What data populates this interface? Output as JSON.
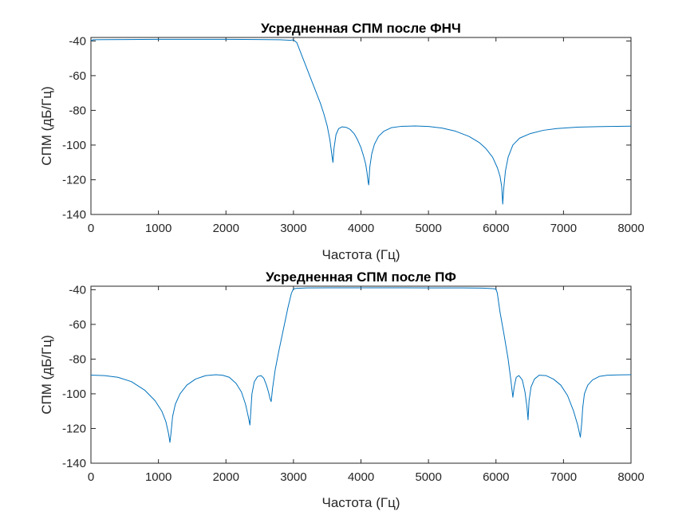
{
  "chart_data": [
    {
      "type": "line",
      "title": "Усредненная СПМ после ФНЧ",
      "xlabel": "Частота (Гц)",
      "ylabel": "СПМ (дБ/Гц)",
      "xlim": [
        0,
        8000
      ],
      "ylim": [
        -140,
        -38
      ],
      "xticks": [
        0,
        1000,
        2000,
        3000,
        4000,
        5000,
        6000,
        7000,
        8000
      ],
      "yticks": [
        -40,
        -60,
        -80,
        -100,
        -120,
        -140
      ],
      "grid": false,
      "color": "#0072BD",
      "series": [
        {
          "x": [
            0,
            30,
            500,
            1000,
            1500,
            2000,
            2500,
            2800,
            2950,
            3000,
            3050,
            3100,
            3200,
            3300,
            3400,
            3450,
            3500,
            3540,
            3570,
            3585,
            3600,
            3630,
            3670,
            3720,
            3780,
            3840,
            3900,
            3950,
            4000,
            4040,
            4070,
            4090,
            4105,
            4115,
            4130,
            4160,
            4200,
            4260,
            4340,
            4450,
            4600,
            4800,
            5000,
            5200,
            5400,
            5600,
            5750,
            5850,
            5950,
            6020,
            6060,
            6085,
            6100,
            6115,
            6140,
            6180,
            6250,
            6350,
            6500,
            6700,
            6900,
            7200,
            7500,
            7800,
            8000
          ],
          "y": [
            -40,
            -39.3,
            -39.2,
            -39.1,
            -39.1,
            -39.1,
            -39.2,
            -39.3,
            -39.6,
            -39.4,
            -41,
            -46,
            -56,
            -66,
            -76,
            -82,
            -89,
            -97,
            -106,
            -110,
            -102,
            -94,
            -90.5,
            -89.5,
            -89.8,
            -91,
            -93.5,
            -97,
            -101.5,
            -106.5,
            -111,
            -116,
            -121,
            -123,
            -113,
            -105,
            -99.5,
            -95,
            -92,
            -90,
            -89.2,
            -89,
            -89.3,
            -90.2,
            -92,
            -95,
            -98.5,
            -102,
            -107,
            -113,
            -118,
            -124,
            -134,
            -125,
            -115,
            -107,
            -100,
            -96,
            -93.5,
            -91.5,
            -90.5,
            -89.7,
            -89.4,
            -89.2,
            -89.1
          ]
        }
      ]
    },
    {
      "type": "line",
      "title": "Усредненная СПМ после ПФ",
      "xlabel": "Частота (Гц)",
      "ylabel": "СПМ (дБ/Гц)",
      "xlim": [
        0,
        8000
      ],
      "ylim": [
        -140,
        -38
      ],
      "xticks": [
        0,
        1000,
        2000,
        3000,
        4000,
        5000,
        6000,
        7000,
        8000
      ],
      "yticks": [
        -40,
        -60,
        -80,
        -100,
        -120,
        -140
      ],
      "grid": false,
      "color": "#0072BD",
      "series": [
        {
          "x": [
            0,
            200,
            400,
            600,
            800,
            950,
            1050,
            1110,
            1150,
            1170,
            1185,
            1210,
            1250,
            1320,
            1420,
            1550,
            1700,
            1850,
            1950,
            2050,
            2150,
            2230,
            2290,
            2330,
            2355,
            2365,
            2385,
            2420,
            2470,
            2520,
            2560,
            2600,
            2630,
            2655,
            2670,
            2690,
            2730,
            2780,
            2850,
            2920,
            2970,
            3000,
            3050,
            3200,
            3500,
            4000,
            4500,
            5000,
            5500,
            5800,
            5950,
            6000,
            6020,
            6060,
            6120,
            6180,
            6220,
            6250,
            6270,
            6300,
            6340,
            6390,
            6430,
            6460,
            6475,
            6490,
            6520,
            6570,
            6640,
            6740,
            6850,
            6960,
            7060,
            7150,
            7210,
            7250,
            7270,
            7285,
            7310,
            7360,
            7430,
            7530,
            7650,
            7800,
            8000
          ],
          "y": [
            -89.2,
            -89.5,
            -90.5,
            -93,
            -98,
            -104,
            -110,
            -116,
            -123,
            -128,
            -123,
            -113,
            -106,
            -100,
            -95,
            -91.5,
            -89.5,
            -89,
            -89.3,
            -90.5,
            -94,
            -99,
            -106,
            -113,
            -118,
            -112,
            -100,
            -93,
            -90,
            -89.5,
            -91,
            -95,
            -99,
            -103,
            -104.5,
            -97,
            -86,
            -76,
            -63,
            -50,
            -42,
            -39.5,
            -39.2,
            -39,
            -38.9,
            -38.9,
            -38.9,
            -39,
            -39,
            -39.1,
            -39.4,
            -39.6,
            -42,
            -53,
            -66,
            -80,
            -92,
            -102,
            -96,
            -90.5,
            -89.5,
            -92,
            -99,
            -108,
            -115,
            -104,
            -96,
            -91.5,
            -89.3,
            -89.5,
            -91.5,
            -95,
            -101,
            -110,
            -118,
            -125,
            -117,
            -108,
            -100,
            -95,
            -92,
            -90,
            -89.3,
            -89.1,
            -89
          ]
        }
      ]
    }
  ]
}
